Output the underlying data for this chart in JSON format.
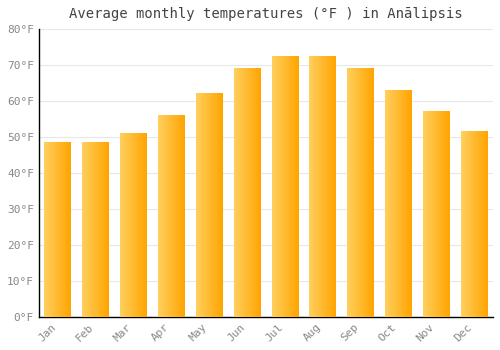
{
  "title": "Average monthly temperatures (°F ) in Anālipsis",
  "months": [
    "Jan",
    "Feb",
    "Mar",
    "Apr",
    "May",
    "Jun",
    "Jul",
    "Aug",
    "Sep",
    "Oct",
    "Nov",
    "Dec"
  ],
  "values": [
    48.5,
    48.5,
    51.0,
    56.0,
    62.0,
    69.0,
    72.5,
    72.5,
    69.0,
    63.0,
    57.0,
    51.5
  ],
  "bar_color_left": "#FFD060",
  "bar_color_right": "#FFA500",
  "background_color": "#FFFFFF",
  "grid_color": "#E8E8E8",
  "ylim": [
    0,
    80
  ],
  "ytick_step": 10,
  "title_fontsize": 10,
  "tick_fontsize": 8,
  "bar_width": 0.7,
  "figsize": [
    5.0,
    3.5
  ],
  "dpi": 100
}
